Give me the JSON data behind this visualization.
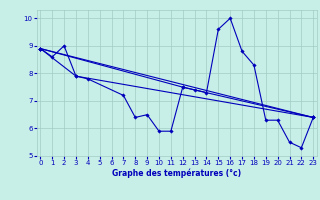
{
  "xlabel": "Graphe des températures (°c)",
  "bg_color": "#c8eee8",
  "grid_color": "#a0ccc4",
  "line_color": "#0000bb",
  "tick_color": "#0000bb",
  "xlim": [
    -0.3,
    23.3
  ],
  "ylim": [
    5,
    10.3
  ],
  "yticks": [
    5,
    6,
    7,
    8,
    9,
    10
  ],
  "xticks": [
    0,
    1,
    2,
    3,
    4,
    5,
    6,
    7,
    8,
    9,
    10,
    11,
    12,
    13,
    14,
    15,
    16,
    17,
    18,
    19,
    20,
    21,
    22,
    23
  ],
  "series": [
    {
      "x": [
        0,
        1,
        2,
        3,
        4,
        7,
        8,
        9,
        10,
        11,
        12,
        13,
        14,
        15,
        16,
        17,
        18,
        19,
        20,
        21,
        22,
        23
      ],
      "y": [
        8.9,
        8.6,
        9.0,
        7.9,
        7.8,
        7.2,
        6.4,
        6.5,
        5.9,
        5.9,
        7.5,
        7.4,
        7.3,
        9.6,
        10.0,
        8.8,
        8.3,
        6.3,
        6.3,
        5.5,
        5.3,
        6.4
      ]
    },
    {
      "x": [
        0,
        3,
        23
      ],
      "y": [
        8.9,
        7.9,
        6.4
      ]
    },
    {
      "x": [
        0,
        12,
        23
      ],
      "y": [
        8.9,
        7.5,
        6.4
      ]
    },
    {
      "x": [
        0,
        23
      ],
      "y": [
        8.9,
        6.4
      ]
    }
  ],
  "marker": "D",
  "markersize": 1.8,
  "linewidth": 0.8,
  "tick_labelsize": 5,
  "xlabel_fontsize": 5.5,
  "xlabel_fontstyle": "bold"
}
